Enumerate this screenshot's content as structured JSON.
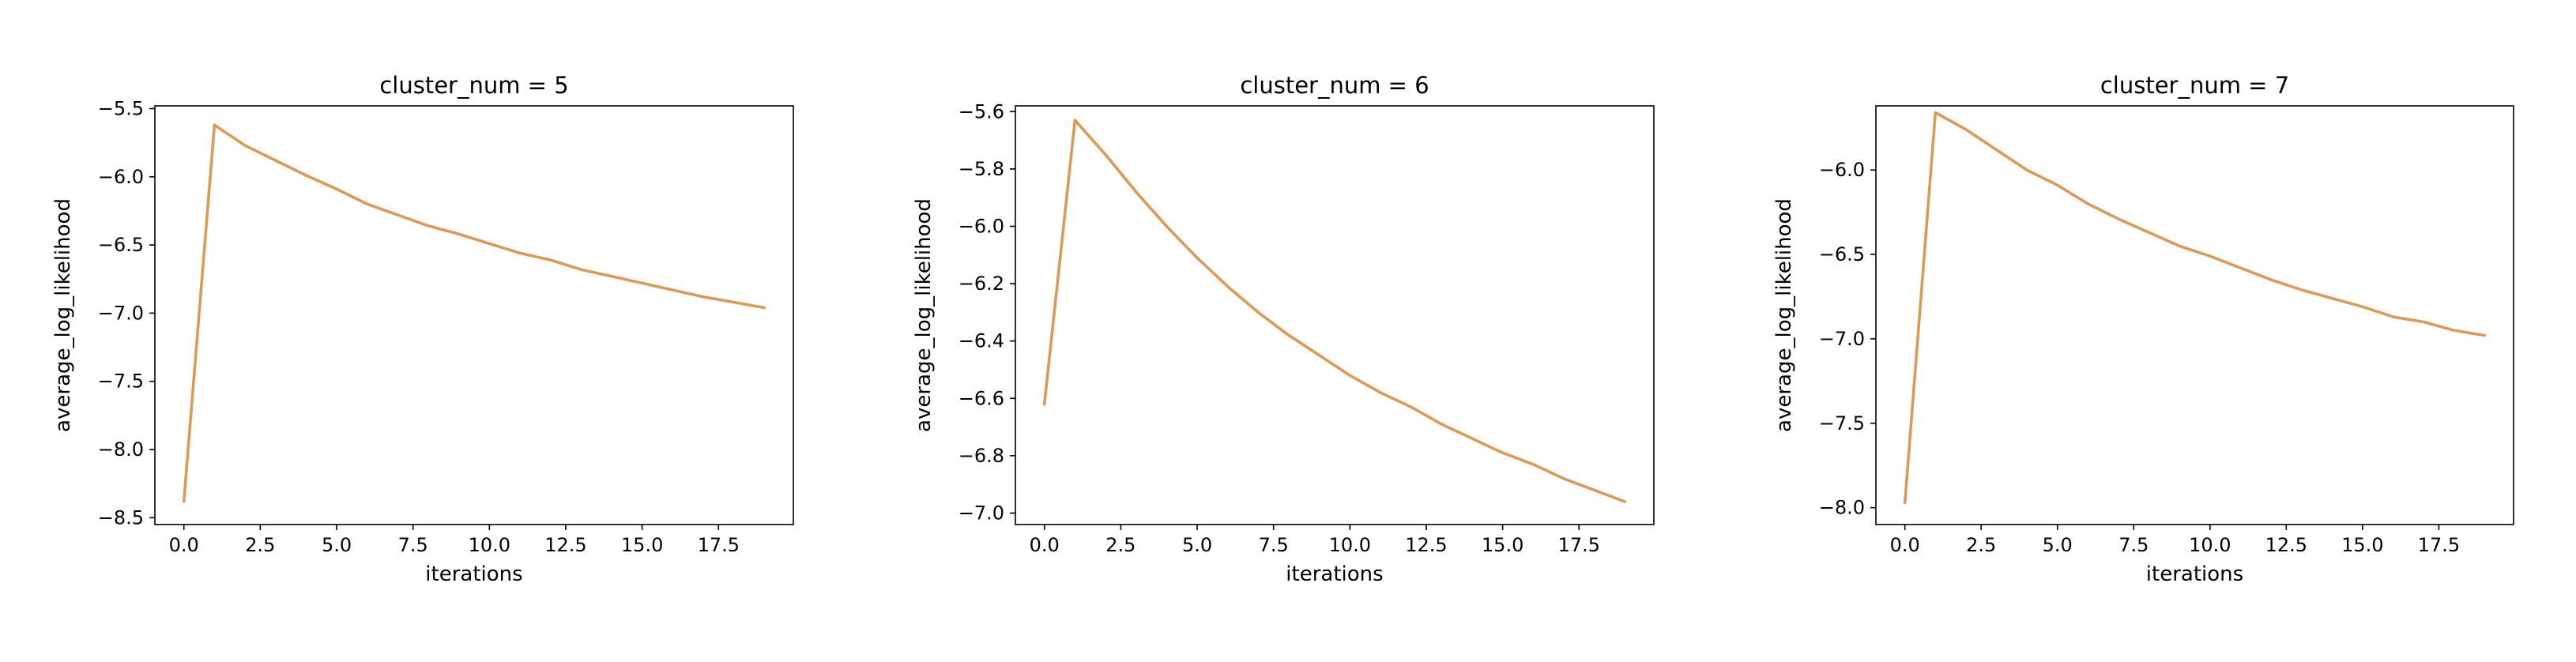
{
  "figure": {
    "line_color": "#dd9a57",
    "shadow_color": "#5b8fc9"
  },
  "chart_data": [
    {
      "type": "line",
      "title": "cluster_num = 5",
      "xlabel": "iterations",
      "ylabel": "average_log_likelihood",
      "xlim": [
        -0.95,
        19.95
      ],
      "ylim": [
        -8.55,
        -5.48
      ],
      "xticks": [
        0.0,
        2.5,
        5.0,
        7.5,
        10.0,
        12.5,
        15.0,
        17.5
      ],
      "xtick_labels": [
        "0.0",
        "2.5",
        "5.0",
        "7.5",
        "10.0",
        "12.5",
        "15.0",
        "17.5"
      ],
      "yticks": [
        -5.5,
        -6.0,
        -6.5,
        -7.0,
        -7.5,
        -8.0,
        -8.5
      ],
      "ytick_labels": [
        "−5.5",
        "−6.0",
        "−6.5",
        "−7.0",
        "−7.5",
        "−8.0",
        "−8.5"
      ],
      "grid": false,
      "series": [
        {
          "x": [
            0,
            1,
            2,
            3,
            4,
            5,
            6,
            7,
            8,
            9,
            10,
            11,
            12,
            13,
            14,
            15,
            16,
            17,
            18,
            19
          ],
          "values": [
            -8.38,
            -5.62,
            -5.77,
            -5.88,
            -5.99,
            -6.09,
            -6.2,
            -6.28,
            -6.36,
            -6.42,
            -6.49,
            -6.56,
            -6.61,
            -6.68,
            -6.73,
            -6.78,
            -6.83,
            -6.88,
            -6.92,
            -6.96
          ]
        }
      ]
    },
    {
      "type": "line",
      "title": "cluster_num = 6",
      "xlabel": "iterations",
      "ylabel": "average_log_likelihood",
      "xlim": [
        -0.95,
        19.95
      ],
      "ylim": [
        -7.04,
        -5.58
      ],
      "xticks": [
        0.0,
        2.5,
        5.0,
        7.5,
        10.0,
        12.5,
        15.0,
        17.5
      ],
      "xtick_labels": [
        "0.0",
        "2.5",
        "5.0",
        "7.5",
        "10.0",
        "12.5",
        "15.0",
        "17.5"
      ],
      "yticks": [
        -5.6,
        -5.8,
        -6.0,
        -6.2,
        -6.4,
        -6.6,
        -6.8,
        -7.0
      ],
      "ytick_labels": [
        "−5.6",
        "−5.8",
        "−6.0",
        "−6.2",
        "−6.4",
        "−6.6",
        "−6.8",
        "−7.0"
      ],
      "grid": false,
      "series": [
        {
          "x": [
            0,
            1,
            2,
            3,
            4,
            5,
            6,
            7,
            8,
            9,
            10,
            11,
            12,
            13,
            14,
            15,
            16,
            17,
            18,
            19
          ],
          "values": [
            -6.62,
            -5.63,
            -5.75,
            -5.88,
            -6.0,
            -6.11,
            -6.21,
            -6.3,
            -6.38,
            -6.45,
            -6.52,
            -6.58,
            -6.63,
            -6.69,
            -6.74,
            -6.79,
            -6.83,
            -6.88,
            -6.92,
            -6.96
          ]
        }
      ]
    },
    {
      "type": "line",
      "title": "cluster_num = 7",
      "xlabel": "iterations",
      "ylabel": "average_log_likelihood",
      "xlim": [
        -0.95,
        19.95
      ],
      "ylim": [
        -8.1,
        -5.62
      ],
      "xticks": [
        0.0,
        2.5,
        5.0,
        7.5,
        10.0,
        12.5,
        15.0,
        17.5
      ],
      "xtick_labels": [
        "0.0",
        "2.5",
        "5.0",
        "7.5",
        "10.0",
        "12.5",
        "15.0",
        "17.5"
      ],
      "yticks": [
        -6.0,
        -6.5,
        -7.0,
        -7.5,
        -8.0
      ],
      "ytick_labels": [
        "−6.0",
        "−6.5",
        "−7.0",
        "−7.5",
        "−8.0"
      ],
      "grid": false,
      "series": [
        {
          "x": [
            0,
            1,
            2,
            3,
            4,
            5,
            6,
            7,
            8,
            9,
            10,
            11,
            12,
            13,
            14,
            15,
            16,
            17,
            18,
            19
          ],
          "values": [
            -7.97,
            -5.66,
            -5.76,
            -5.88,
            -6.0,
            -6.09,
            -6.2,
            -6.29,
            -6.37,
            -6.45,
            -6.51,
            -6.58,
            -6.65,
            -6.71,
            -6.76,
            -6.81,
            -6.87,
            -6.9,
            -6.95,
            -6.98
          ]
        }
      ]
    }
  ]
}
